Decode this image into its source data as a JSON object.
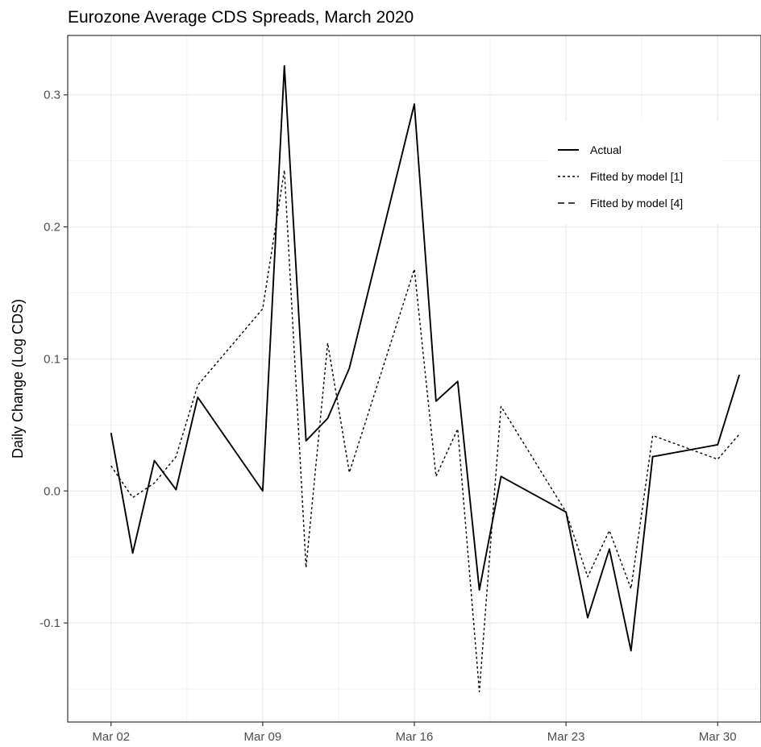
{
  "chart_data": {
    "type": "line",
    "title": "Eurozone Average CDS Spreads, March 2020",
    "xlabel": "",
    "ylabel": "Daily Change (Log CDS)",
    "x_tick_labels": [
      "Mar 02",
      "Mar 09",
      "Mar 16",
      "Mar 23",
      "Mar 30"
    ],
    "y_tick_labels": [
      "-0.1",
      "0.0",
      "0.1",
      "0.2",
      "0.3"
    ],
    "xlim": [
      "2020-02-29",
      "2020-04-01"
    ],
    "ylim": [
      -0.175,
      0.345
    ],
    "grid": true,
    "legend_position": "top-right",
    "series": [
      {
        "name": "Actual",
        "style": "solid",
        "points": [
          [
            "2020-03-02",
            0.044
          ],
          [
            "2020-03-03",
            -0.047
          ],
          [
            "2020-03-04",
            0.023
          ],
          [
            "2020-03-05",
            0.001
          ],
          [
            "2020-03-06",
            0.071
          ],
          [
            "2020-03-09",
            0.0
          ],
          [
            "2020-03-10",
            0.322
          ],
          [
            "2020-03-11",
            0.038
          ],
          [
            "2020-03-12",
            0.055
          ],
          [
            "2020-03-13",
            0.093
          ],
          [
            "2020-03-16",
            0.293
          ],
          [
            "2020-03-17",
            0.068
          ],
          [
            "2020-03-18",
            0.083
          ],
          [
            "2020-03-19",
            -0.075
          ],
          [
            "2020-03-20",
            0.011
          ],
          [
            "2020-03-23",
            -0.016
          ],
          [
            "2020-03-24",
            -0.096
          ],
          [
            "2020-03-25",
            -0.044
          ],
          [
            "2020-03-26",
            -0.121
          ],
          [
            "2020-03-27",
            0.026
          ],
          [
            "2020-03-30",
            0.035
          ],
          [
            "2020-03-31",
            0.088
          ]
        ]
      },
      {
        "name": "Fitted by model [1]",
        "style": "dotted",
        "points": [
          [
            "2020-03-02",
            0.019
          ],
          [
            "2020-03-03",
            -0.005
          ],
          [
            "2020-03-04",
            0.006
          ],
          [
            "2020-03-05",
            0.026
          ],
          [
            "2020-03-06",
            0.08
          ],
          [
            "2020-03-09",
            0.138
          ],
          [
            "2020-03-10",
            0.243
          ],
          [
            "2020-03-11",
            -0.058
          ],
          [
            "2020-03-12",
            0.112
          ],
          [
            "2020-03-13",
            0.014
          ],
          [
            "2020-03-16",
            0.168
          ],
          [
            "2020-03-17",
            0.011
          ],
          [
            "2020-03-18",
            0.047
          ],
          [
            "2020-03-19",
            -0.152
          ],
          [
            "2020-03-20",
            0.064
          ],
          [
            "2020-03-23",
            -0.016
          ],
          [
            "2020-03-24",
            -0.065
          ],
          [
            "2020-03-25",
            -0.03
          ],
          [
            "2020-03-26",
            -0.074
          ],
          [
            "2020-03-27",
            0.042
          ],
          [
            "2020-03-30",
            0.024
          ],
          [
            "2020-03-31",
            0.043
          ]
        ]
      },
      {
        "name": "Fitted by model [4]",
        "style": "dashed",
        "points": []
      }
    ]
  }
}
